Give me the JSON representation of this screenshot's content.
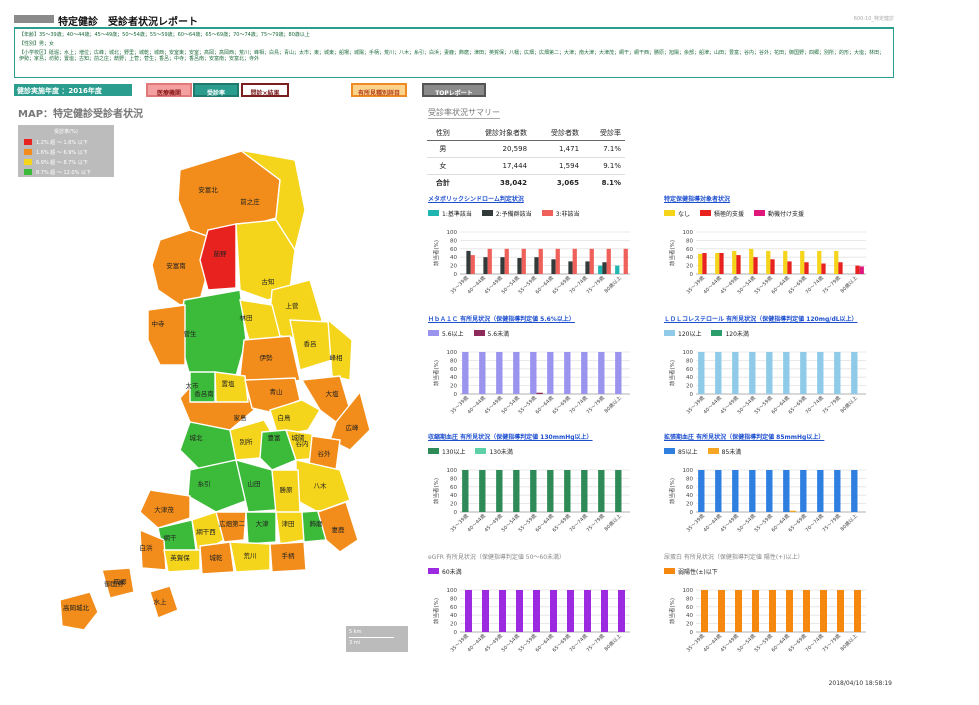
{
  "header": {
    "title": "特定健診　受診者状況レポート",
    "right_label": "600-10_特定健診"
  },
  "filters": {
    "age": "【年齢】35～39歳；40～44歳；45～49歳；50～54歳；55～59歳；60～64歳；65～69歳；70～74歳；75～79歳；80歳以上",
    "sex": "【性別】男；女",
    "school": "【小学校区】砥堀；水上；増位；広峰；城北；野里；城乾；城西；安室東；安室；高岡；高岡西；荒川；峰相；白鳥；青山；太市；東；城東；船場；城陽；手柄；荒川；八木；糸引；白浜；妻鹿；飾磨；津田；英賀保；八幡；広畑；広畑第二；大津；南大津；大津茂；網干；網干西；勝原；旭陽；余部；船津；山田；豊富；谷内；谷外；花田；御国野；四郷；別所；的形；大塩；林田；伊勢；家島；坊勢；置塩；古知；前之庄；莇野；上菅；菅生；香呂；中寺；香呂南；安富南；安富北；寺外"
  },
  "year_label": "健診実施年度 ：2016年度",
  "tabs": [
    {
      "label": "医療機関",
      "bg": "#f4a0a0",
      "fg": "#8b1a1a",
      "border": "#e07a7a"
    },
    {
      "label": "受診率",
      "bg": "#2a9d8f",
      "fg": "#ffffff",
      "border": "#1f7a6e"
    },
    {
      "label": "問診×結果",
      "bg": "#ffffff",
      "fg": "#7a1f1f",
      "border": "#7a1f1f"
    },
    {
      "label": "有所見種別詳目",
      "bg": "#fbd38d",
      "fg": "#b5431f",
      "border": "#f08a24"
    },
    {
      "label": "TOPレポート",
      "bg": "#8a8a8a",
      "fg": "#ffffff",
      "border": "#555555"
    }
  ],
  "map": {
    "title": "MAP：特定健診受診者状況",
    "legend_title": "受診率(%)",
    "legend": [
      {
        "label": "1.2% 超 ～ 1.6% 以下",
        "color": "#e8231f"
      },
      {
        "label": "1.6% 超 ～ 6.9% 以下",
        "color": "#f28c1a"
      },
      {
        "label": "6.9% 超 ～ 8.7% 以下",
        "color": "#f5d41c"
      },
      {
        "label": "8.7% 超 ～ 12.0% 以下",
        "color": "#3cba3a"
      }
    ],
    "regions": [
      "安富北",
      "前之庄",
      "安富南",
      "莇野",
      "古知",
      "上菅",
      "菅生",
      "中寺",
      "林田",
      "伊勢",
      "香呂",
      "峰相",
      "香呂南",
      "太市",
      "置塩",
      "青山",
      "白鳥",
      "大塩",
      "広峰",
      "城北",
      "別所",
      "豊富",
      "谷内",
      "谷外",
      "八木",
      "糸引",
      "山田",
      "勝原",
      "大津茂",
      "網干",
      "網干西",
      "広畑第二",
      "大津",
      "津田",
      "飾磨",
      "妻鹿",
      "白浜",
      "英賀保",
      "城乾",
      "荒川",
      "手柄",
      "城陽",
      "四郷",
      "水上",
      "高岡城北",
      "御国野",
      "家島"
    ],
    "scale": [
      "5 km",
      "3 mi"
    ]
  },
  "summary": {
    "title": "受診率状況サマリー",
    "headers": [
      "性別",
      "健診対象者数",
      "受診者数",
      "受診率"
    ],
    "rows": [
      [
        "男",
        "20,598",
        "1,471",
        "7.1%"
      ],
      [
        "女",
        "17,444",
        "1,594",
        "9.1%"
      ]
    ],
    "total": [
      "合計",
      "38,042",
      "3,065",
      "8.1%"
    ]
  },
  "charts": [
    {
      "title": "メタボリックシンドローム判定状況",
      "title_style": "link",
      "ylabel": "該当者(%)",
      "ylim": [
        0,
        100
      ],
      "categories": [
        "35～39歳",
        "40～44歳",
        "45～49歳",
        "50～54歳",
        "55～59歳",
        "60～64歳",
        "65～69歳",
        "70～74歳",
        "75～79歳",
        "80歳以上"
      ],
      "series": [
        {
          "name": "1:基準該当",
          "color": "#1fb5b0",
          "values": [
            0,
            0,
            0,
            0,
            0,
            0,
            0,
            0,
            20,
            20
          ]
        },
        {
          "name": "2:予備群該当",
          "color": "#333a3a",
          "values": [
            55,
            40,
            40,
            38,
            40,
            35,
            30,
            30,
            28,
            0
          ]
        },
        {
          "name": "3:非該当",
          "color": "#f0605b",
          "values": [
            45,
            60,
            60,
            60,
            60,
            60,
            60,
            60,
            60,
            60
          ]
        }
      ]
    },
    {
      "title": "特定保健指導対象者状況",
      "title_style": "link",
      "ylabel": "該当者(%)",
      "ylim": [
        0,
        100
      ],
      "categories": [
        "35～39歳",
        "40～44歳",
        "45～49歳",
        "50～54歳",
        "55～59歳",
        "60～64歳",
        "65～69歳",
        "70～74歳",
        "75～79歳",
        "80歳以上"
      ],
      "series": [
        {
          "name": "なし",
          "color": "#f5d41c",
          "values": [
            48,
            50,
            55,
            60,
            55,
            55,
            55,
            55,
            55,
            0
          ]
        },
        {
          "name": "積極的支援",
          "color": "#e8231f",
          "values": [
            50,
            50,
            45,
            40,
            35,
            30,
            28,
            25,
            28,
            20
          ]
        },
        {
          "name": "動機付け支援",
          "color": "#e0177a",
          "values": [
            0,
            0,
            0,
            0,
            0,
            0,
            0,
            0,
            0,
            18
          ]
        }
      ]
    },
    {
      "title": "ＨｂＡ１Ｃ 有所見状況（保健指導判定値 5.6%以上）",
      "title_style": "link",
      "ylabel": "該当者(%)",
      "ylim": [
        0,
        100
      ],
      "categories": [
        "35～39歳",
        "40～44歳",
        "45～49歳",
        "50～54歳",
        "55～59歳",
        "60～64歳",
        "65～69歳",
        "70～74歳",
        "75～79歳",
        "80歳以上"
      ],
      "series": [
        {
          "name": "5.6以上",
          "color": "#9b94ee",
          "values": [
            100,
            100,
            100,
            100,
            100,
            100,
            100,
            100,
            100,
            100
          ]
        },
        {
          "name": "5.6未満",
          "color": "#8e2a5a",
          "values": [
            0,
            0,
            0,
            0,
            3,
            0,
            0,
            0,
            0,
            0
          ]
        }
      ]
    },
    {
      "title": "ＬＤＬコレステロール 有所見状況（保健指導判定値 120mg/dL以上）",
      "title_style": "link",
      "ylabel": "該当者(%)",
      "ylim": [
        0,
        100
      ],
      "categories": [
        "35～39歳",
        "40～44歳",
        "45～49歳",
        "50～54歳",
        "55～59歳",
        "60～64歳",
        "65～69歳",
        "70～74歳",
        "75～79歳",
        "80歳以上"
      ],
      "series": [
        {
          "name": "120以上",
          "color": "#8fcbe8",
          "values": [
            100,
            100,
            100,
            100,
            100,
            100,
            100,
            100,
            100,
            100
          ]
        },
        {
          "name": "120未満",
          "color": "#2a9d6a",
          "values": [
            0,
            0,
            0,
            0,
            0,
            0,
            0,
            0,
            0,
            0
          ]
        }
      ]
    },
    {
      "title": "収縮期血圧 有所見状況（保健指導判定値 130mmHg以上）",
      "title_style": "link",
      "ylabel": "該当者(%)",
      "ylim": [
        0,
        100
      ],
      "categories": [
        "35～39歳",
        "40～44歳",
        "45～49歳",
        "50～54歳",
        "55～59歳",
        "60～64歳",
        "65～69歳",
        "70～74歳",
        "75～79歳",
        "80歳以上"
      ],
      "series": [
        {
          "name": "130以上",
          "color": "#2e8b57",
          "values": [
            100,
            100,
            100,
            100,
            100,
            100,
            100,
            100,
            100,
            100
          ]
        },
        {
          "name": "130未満",
          "color": "#5ed0a8",
          "values": [
            0,
            0,
            0,
            0,
            0,
            0,
            0,
            0,
            0,
            0
          ]
        }
      ]
    },
    {
      "title": "拡張期血圧 有所見状況（保健指導判定値 85mmHg以上）",
      "title_style": "link",
      "ylabel": "該当者(%)",
      "ylim": [
        0,
        100
      ],
      "categories": [
        "35～39歳",
        "40～44歳",
        "45～49歳",
        "50～54歳",
        "55～59歳",
        "60～64歳",
        "65～69歳",
        "70～74歳",
        "75～79歳",
        "80歳以上"
      ],
      "series": [
        {
          "name": "85以上",
          "color": "#2f7fe0",
          "values": [
            100,
            100,
            100,
            100,
            100,
            100,
            100,
            100,
            100,
            100
          ]
        },
        {
          "name": "85未満",
          "color": "#f5a623",
          "values": [
            0,
            0,
            0,
            0,
            0,
            3,
            0,
            0,
            0,
            0
          ]
        }
      ]
    },
    {
      "title": "eGFR 有所見状況（保健指導判定値 50～60未満）",
      "title_style": "plain",
      "ylabel": "該当者(%)",
      "ylim": [
        0,
        100
      ],
      "categories": [
        "35～39歳",
        "40～44歳",
        "45～49歳",
        "50～54歳",
        "55～59歳",
        "60～64歳",
        "65～69歳",
        "70～74歳",
        "75～79歳",
        "80歳以上"
      ],
      "series": [
        {
          "name": "60未満",
          "color": "#9b2ae0",
          "values": [
            100,
            100,
            100,
            100,
            100,
            100,
            100,
            100,
            100,
            100
          ]
        }
      ]
    },
    {
      "title": "尿蛋白 有所見状況（保健指導判定値 陽性(+)以上）",
      "title_style": "plain",
      "ylabel": "該当者(%)",
      "ylim": [
        0,
        100
      ],
      "categories": [
        "35～39歳",
        "40～44歳",
        "45～49歳",
        "50～54歳",
        "55～59歳",
        "60～64歳",
        "65～69歳",
        "70～74歳",
        "75～79歳",
        "80歳以上"
      ],
      "series": [
        {
          "name": "弱陽性(±)以下",
          "color": "#f5890f",
          "values": [
            100,
            100,
            100,
            100,
            100,
            100,
            100,
            100,
            100,
            100
          ]
        }
      ]
    }
  ],
  "timestamp": "2018/04/10 18:58:19"
}
